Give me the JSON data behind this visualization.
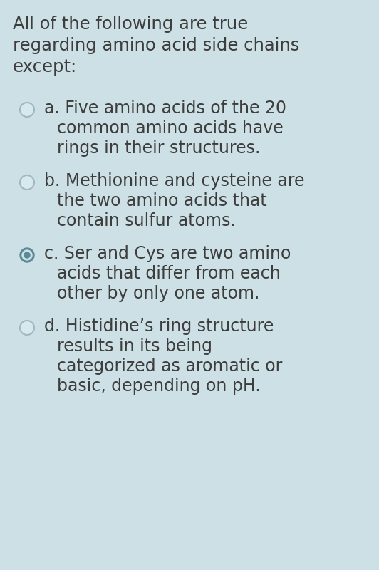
{
  "background_color": "#cde0e5",
  "text_color": "#3d3d3d",
  "title_lines": [
    "All of the following are true",
    "regarding amino acid side chains",
    "except:"
  ],
  "options": [
    {
      "label": "a",
      "selected": false,
      "lines": [
        "a. Five amino acids of the 20",
        "common amino acids have",
        "rings in their structures."
      ]
    },
    {
      "label": "b",
      "selected": false,
      "lines": [
        "b. Methionine and cysteine are",
        "the two amino acids that",
        "contain sulfur atoms."
      ]
    },
    {
      "label": "c",
      "selected": true,
      "lines": [
        "c. Ser and Cys are two amino",
        "acids that differ from each",
        "other by only one atom."
      ]
    },
    {
      "label": "d",
      "selected": false,
      "lines": [
        "d. Histidine’s ring structure",
        "results in its being",
        "categorized as aromatic or",
        "basic, depending on pH."
      ]
    }
  ],
  "font_size_title": 17.5,
  "font_size_option": 17,
  "circle_edge_color_empty": "#a0b8c0",
  "circle_edge_color_selected": "#4a7a88",
  "circle_fill_selected": "#5a8a98",
  "background_color_circle": "#cde0e5"
}
